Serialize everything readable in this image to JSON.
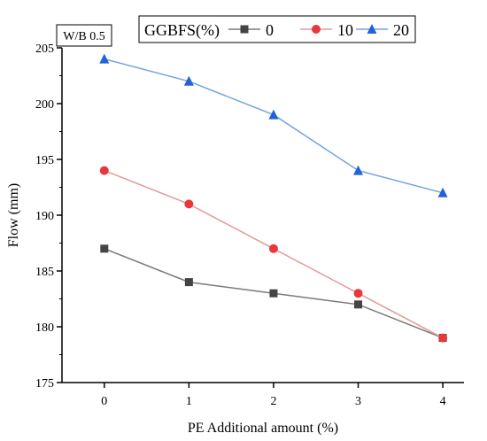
{
  "chart_data": {
    "type": "line",
    "xlabel": "PE Additional amount (%)",
    "ylabel": "Flow (mm)",
    "xlim": [
      -0.5,
      4.25
    ],
    "ylim": [
      175,
      205
    ],
    "x": [
      0,
      1,
      2,
      3,
      4
    ],
    "x_ticks": [
      "0",
      "1",
      "2",
      "3",
      "4"
    ],
    "y_ticks": [
      "175",
      "180",
      "185",
      "190",
      "195",
      "200",
      "205"
    ],
    "annotation": "W/B 0.5",
    "legend": {
      "title": "GGBFS(%)",
      "placement": "top-center"
    },
    "grid": false,
    "series": [
      {
        "name": "0",
        "values": [
          187,
          184,
          183,
          182,
          179
        ],
        "color": "#444444",
        "line_color": "#7a7a7a",
        "marker": "square"
      },
      {
        "name": "10",
        "values": [
          194,
          191,
          187,
          183,
          179
        ],
        "color": "#e8383b",
        "line_color": "#e29a9a",
        "marker": "circle"
      },
      {
        "name": "20",
        "values": [
          204,
          202,
          199,
          194,
          192
        ],
        "color": "#1f63d6",
        "line_color": "#6fa3e0",
        "marker": "triangle"
      }
    ]
  }
}
